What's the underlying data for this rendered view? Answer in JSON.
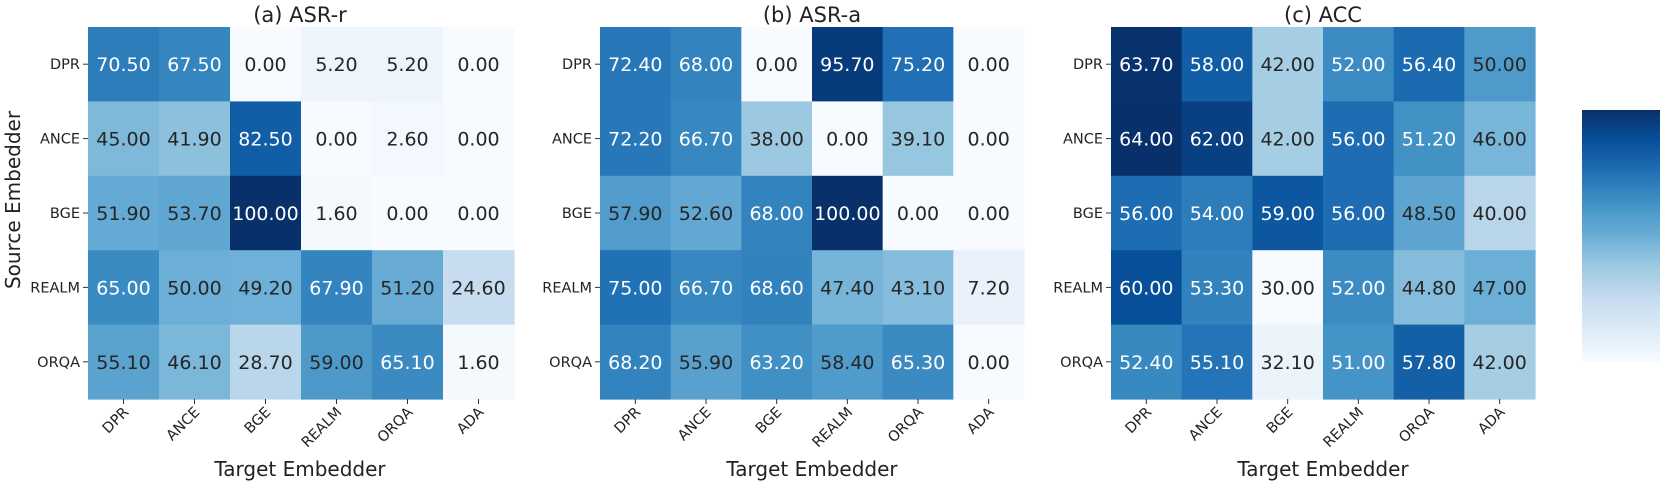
{
  "chart_data": [
    {
      "type": "heatmap",
      "title": "(a) ASR-r",
      "xlabel": "Target Embedder",
      "ylabel": "Source Embedder",
      "x_categories": [
        "DPR",
        "ANCE",
        "BGE",
        "REALM",
        "ORQA",
        "ADA"
      ],
      "y_categories": [
        "DPR",
        "ANCE",
        "BGE",
        "REALM",
        "ORQA"
      ],
      "values": [
        [
          70.5,
          67.5,
          0.0,
          5.2,
          5.2,
          0.0
        ],
        [
          45.0,
          41.9,
          82.5,
          0.0,
          2.6,
          0.0
        ],
        [
          51.9,
          53.7,
          100.0,
          1.6,
          0.0,
          0.0
        ],
        [
          65.0,
          50.0,
          49.2,
          67.9,
          51.2,
          24.6
        ],
        [
          55.1,
          46.1,
          28.7,
          59.0,
          65.1,
          1.6
        ]
      ],
      "colormap": "Blues"
    },
    {
      "type": "heatmap",
      "title": "(b) ASR-a",
      "xlabel": "Target Embedder",
      "ylabel": "",
      "x_categories": [
        "DPR",
        "ANCE",
        "BGE",
        "REALM",
        "ORQA",
        "ADA"
      ],
      "y_categories": [
        "DPR",
        "ANCE",
        "BGE",
        "REALM",
        "ORQA"
      ],
      "values": [
        [
          72.4,
          68.0,
          0.0,
          95.7,
          75.2,
          0.0
        ],
        [
          72.2,
          66.7,
          38.0,
          0.0,
          39.1,
          0.0
        ],
        [
          57.9,
          52.6,
          68.0,
          100.0,
          0.0,
          0.0
        ],
        [
          75.0,
          66.7,
          68.6,
          47.4,
          43.1,
          7.2
        ],
        [
          68.2,
          55.9,
          63.2,
          58.4,
          65.3,
          0.0
        ]
      ],
      "colormap": "Blues"
    },
    {
      "type": "heatmap",
      "title": "(c) ACC",
      "xlabel": "Target Embedder",
      "ylabel": "",
      "x_categories": [
        "DPR",
        "ANCE",
        "BGE",
        "REALM",
        "ORQA",
        "ADA"
      ],
      "y_categories": [
        "DPR",
        "ANCE",
        "BGE",
        "REALM",
        "ORQA"
      ],
      "values": [
        [
          63.7,
          58.0,
          42.0,
          52.0,
          56.4,
          50.0
        ],
        [
          64.0,
          62.0,
          42.0,
          56.0,
          51.2,
          46.0
        ],
        [
          56.0,
          54.0,
          59.0,
          56.0,
          48.5,
          40.0
        ],
        [
          60.0,
          53.3,
          30.0,
          52.0,
          44.8,
          47.0
        ],
        [
          52.4,
          55.1,
          32.1,
          51.0,
          57.8,
          42.0
        ]
      ],
      "colormap": "Blues"
    }
  ],
  "colorbar": {
    "ticks": [
      {
        "label": "1",
        "value": 1
      },
      {
        "label": "0",
        "value": 0
      }
    ],
    "colormap": "Blues"
  }
}
